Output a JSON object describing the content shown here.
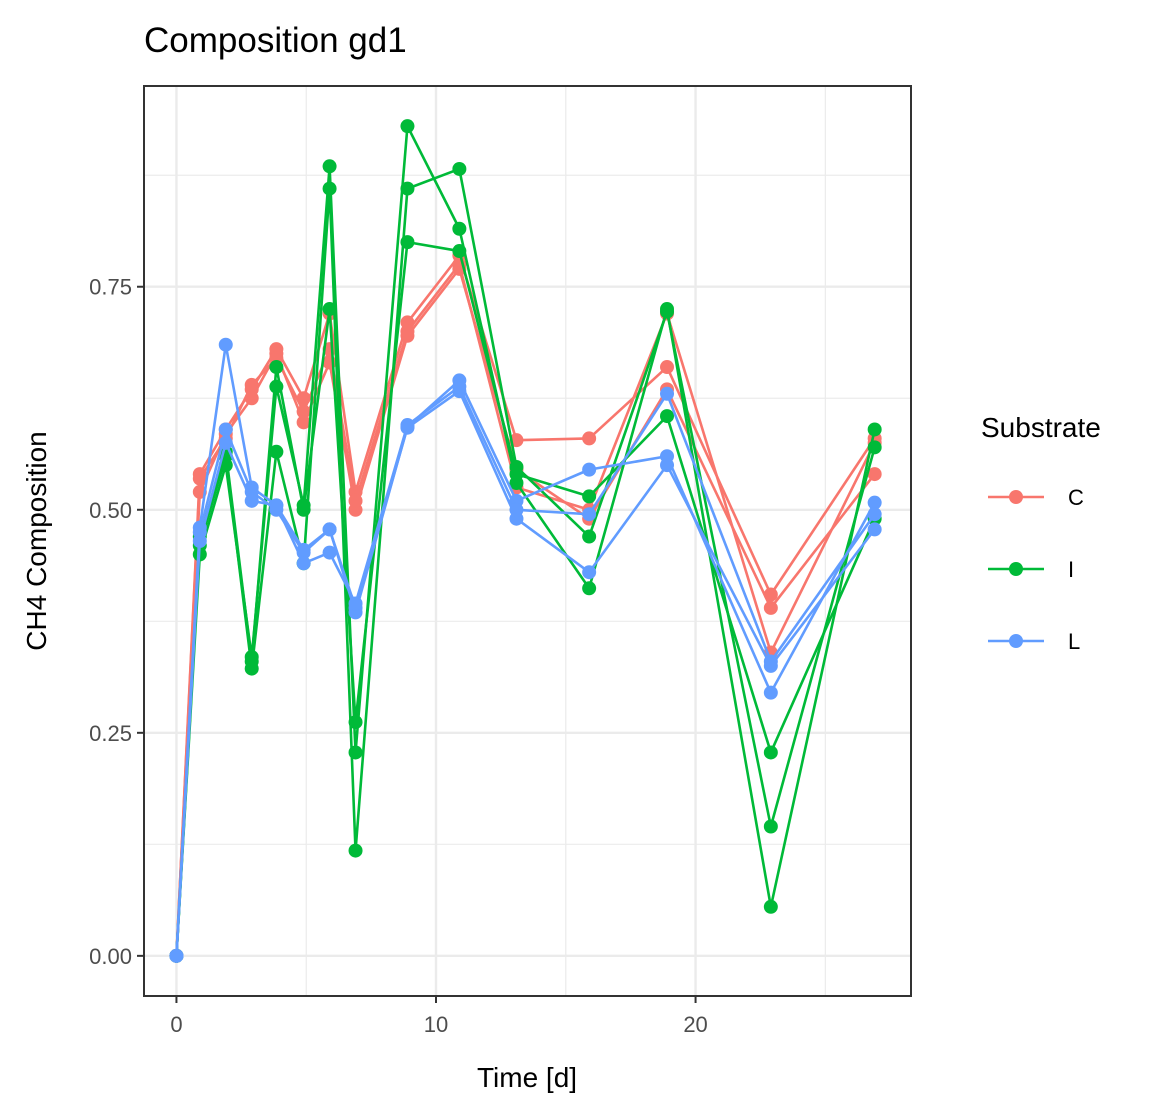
{
  "chart_data": {
    "type": "line",
    "title": "Composition gd1",
    "xlabel": "Time [d]",
    "ylabel": "CH4 Composition",
    "xlim": [
      -1.25,
      28.3
    ],
    "ylim": [
      -0.045,
      0.975
    ],
    "x_ticks": [
      0,
      10,
      20
    ],
    "x_tick_labels": [
      "0",
      "10",
      "20"
    ],
    "y_ticks": [
      0,
      0.25,
      0.5,
      0.75
    ],
    "y_tick_labels": [
      "0.00",
      "0.25",
      "0.50",
      "0.75"
    ],
    "grid": true,
    "legend": {
      "title": "Substrate",
      "placement": "right",
      "entries": [
        "C",
        "I",
        "L"
      ]
    },
    "colors": {
      "C": "#F8766D",
      "I": "#00BA38",
      "L": "#619CFF"
    },
    "x": [
      0,
      0.9,
      1.9,
      2.9,
      3.85,
      4.9,
      5.9,
      6.9,
      8.9,
      10.9,
      13.1,
      15.9,
      18.9,
      22.9,
      26.9
    ],
    "series": [
      {
        "group": "C",
        "values": [
          0,
          0.54,
          0.59,
          0.635,
          0.68,
          0.625,
          0.72,
          0.52,
          0.71,
          0.785,
          0.578,
          0.58,
          0.66,
          0.405,
          0.58
        ]
      },
      {
        "group": "C",
        "values": [
          0,
          0.52,
          0.585,
          0.625,
          0.675,
          0.598,
          0.665,
          0.5,
          0.695,
          0.77,
          0.545,
          0.49,
          0.635,
          0.39,
          0.54
        ]
      },
      {
        "group": "C",
        "values": [
          0,
          0.535,
          0.58,
          0.64,
          0.67,
          0.61,
          0.68,
          0.51,
          0.7,
          0.775,
          0.525,
          0.5,
          0.72,
          0.34,
          0.575
        ]
      },
      {
        "group": "I",
        "values": [
          0,
          0.45,
          0.55,
          0.335,
          0.638,
          0.505,
          0.885,
          0.228,
          0.93,
          0.815,
          0.53,
          0.412,
          0.725,
          0.055,
          0.59
        ]
      },
      {
        "group": "I",
        "values": [
          0,
          0.46,
          0.56,
          0.322,
          0.565,
          0.44,
          0.86,
          0.118,
          0.86,
          0.882,
          0.548,
          0.47,
          0.722,
          0.145,
          0.57
        ]
      },
      {
        "group": "I",
        "values": [
          0,
          0.47,
          0.565,
          0.33,
          0.66,
          0.5,
          0.725,
          0.262,
          0.8,
          0.79,
          0.54,
          0.515,
          0.605,
          0.228,
          0.49
        ]
      },
      {
        "group": "L",
        "values": [
          0,
          0.48,
          0.685,
          0.525,
          0.505,
          0.455,
          0.478,
          0.385,
          0.593,
          0.645,
          0.51,
          0.545,
          0.56,
          0.295,
          0.508
        ]
      },
      {
        "group": "L",
        "values": [
          0,
          0.475,
          0.59,
          0.52,
          0.5,
          0.452,
          0.478,
          0.39,
          0.592,
          0.633,
          0.49,
          0.43,
          0.55,
          0.325,
          0.478
        ]
      },
      {
        "group": "L",
        "values": [
          0,
          0.465,
          0.575,
          0.51,
          0.505,
          0.44,
          0.452,
          0.395,
          0.595,
          0.638,
          0.5,
          0.495,
          0.63,
          0.33,
          0.495
        ]
      }
    ]
  }
}
